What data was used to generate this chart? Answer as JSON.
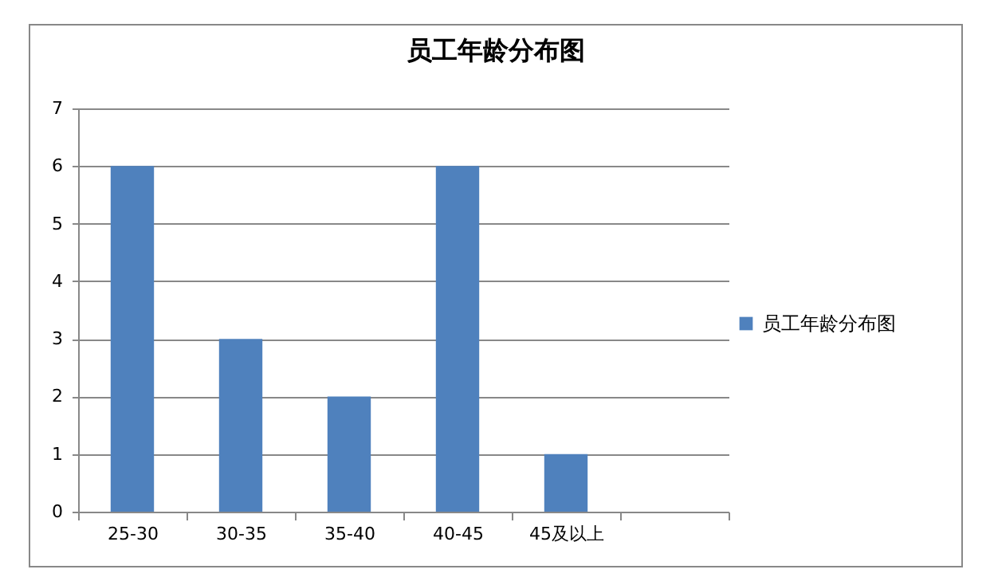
{
  "chart_data": {
    "type": "bar",
    "title": "员工年龄分布图",
    "categories": [
      "25-30",
      "30-35",
      "35-40",
      "40-45",
      "45及以上",
      null
    ],
    "series": [
      {
        "name": "员工年龄分布图",
        "color": "#4f81bd",
        "values": [
          6,
          3,
          2,
          6,
          1,
          null
        ]
      }
    ],
    "ylim": [
      0,
      7
    ],
    "yticks": [
      0,
      1,
      2,
      3,
      4,
      5,
      6,
      7
    ],
    "grid": "y",
    "legend": "right"
  }
}
